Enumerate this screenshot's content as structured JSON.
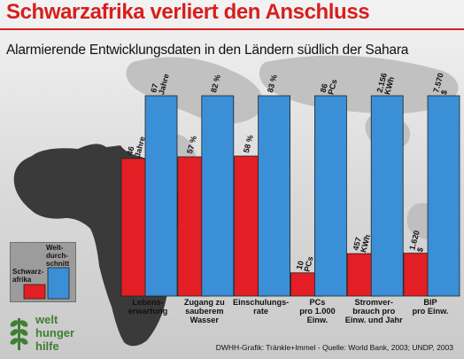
{
  "title": "Schwarzafrika verliert den Anschluss",
  "subtitle": "Alarmierende Entwicklungsdaten in den Ländern südlich der Sahara",
  "source": "DWHH-Grafik: Tränkle+Immel - Quelle: World Bank, 2003; UNDP, 2003",
  "logo": {
    "line1": "welt",
    "line2": "hunger",
    "line3": "hilfe"
  },
  "colors": {
    "red": "#e31e24",
    "blue": "#3b8fd6",
    "africa": "#3a3a3a",
    "title": "#d81e1e",
    "logo_green": "#3f7f32"
  },
  "legend": {
    "africa_label": [
      "Schwarz-",
      "afrika"
    ],
    "world_label": [
      "Welt-",
      "durch-",
      "schnitt"
    ]
  },
  "chart_data": {
    "type": "bar",
    "title": "Schwarzafrika verliert den Anschluss",
    "subtitle": "Alarmierende Entwicklungsdaten in den Ländern südlich der Sahara",
    "categories": [
      [
        "Lebens-",
        "erwartung"
      ],
      [
        "Zugang zu",
        "sauberem",
        "Wasser"
      ],
      [
        "Einschulungs-",
        "rate"
      ],
      [
        "PCs",
        "pro 1.000",
        "Einw."
      ],
      [
        "Stromver-",
        "brauch pro",
        "Einw. und Jahr"
      ],
      [
        "BIP",
        "pro Einw."
      ]
    ],
    "series": [
      {
        "name": "Schwarzafrika",
        "color": "#e31e24",
        "values": [
          46,
          57,
          58,
          10,
          457,
          1620
        ],
        "labels": [
          [
            "46",
            "Jahre"
          ],
          [
            "57 %"
          ],
          [
            "58 %"
          ],
          [
            "10",
            "PCs"
          ],
          [
            "457",
            "KWh"
          ],
          [
            "1.620",
            "$"
          ]
        ],
        "relative": [
          0.687,
          0.695,
          0.699,
          0.116,
          0.212,
          0.214
        ]
      },
      {
        "name": "Weltdurchschnitt",
        "color": "#3b8fd6",
        "values": [
          67,
          82,
          83,
          86,
          2156,
          7570
        ],
        "labels": [
          [
            "67",
            "Jahre"
          ],
          [
            "82 %"
          ],
          [
            "83 %"
          ],
          [
            "86",
            "PCs"
          ],
          [
            "2.156",
            "KWh"
          ],
          [
            "7.570",
            "$"
          ]
        ],
        "relative": [
          1,
          1,
          1,
          1,
          1,
          1
        ]
      }
    ]
  }
}
